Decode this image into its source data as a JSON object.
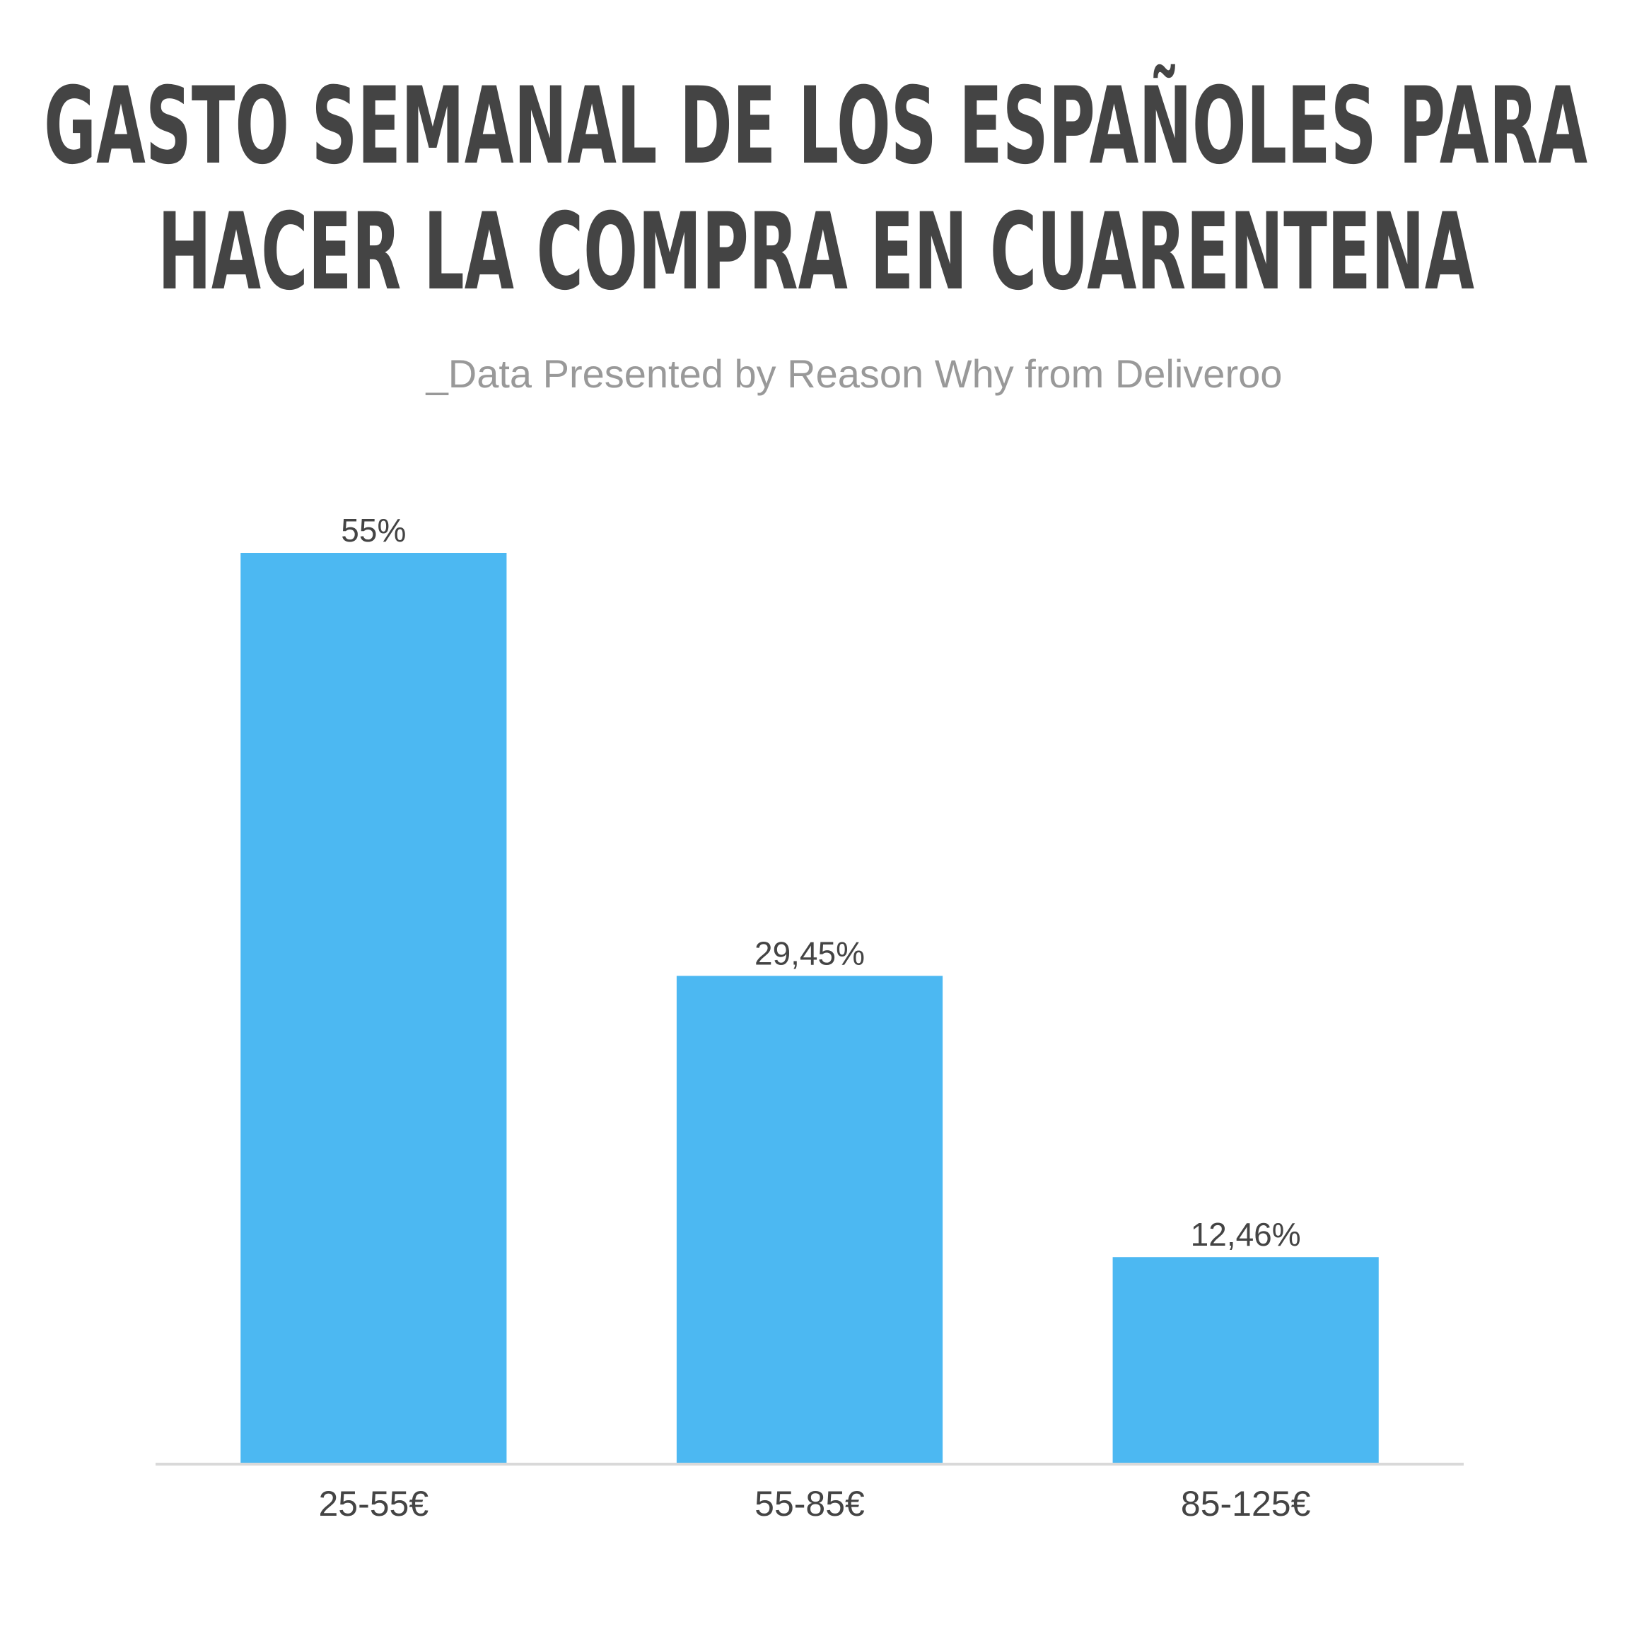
{
  "chart_data": {
    "type": "bar",
    "title": [
      "GASTO SEMANAL DE LOS ESPAÑOLES PARA",
      "HACER LA COMPRA EN CUARENTENA"
    ],
    "subtitle": "_Data Presented by Reason Why from Deliveroo",
    "categories": [
      "25-55€",
      "55-85€",
      "85-125€"
    ],
    "values": [
      55,
      29.45,
      12.46
    ],
    "value_labels": [
      "55%",
      "29,45%",
      "12,46%"
    ],
    "color": "#4cb8f2"
  }
}
